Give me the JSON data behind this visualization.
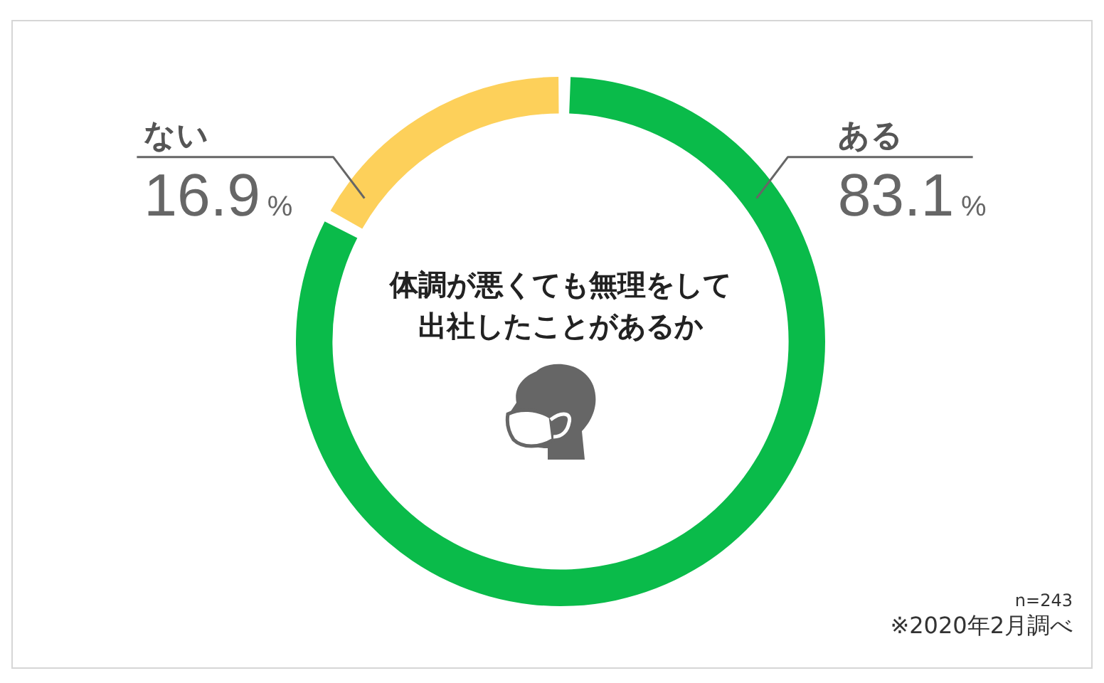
{
  "chart_data": {
    "type": "donut",
    "title": "体調が悪くても無理をして出社したことがあるか",
    "categories": [
      "ある",
      "ない"
    ],
    "values": [
      83.1,
      16.9
    ],
    "colors": [
      "#0abb4a",
      "#fdd05a"
    ],
    "value_labels": [
      "83.1%",
      "16.9%"
    ],
    "legend": false,
    "annotations": [
      "n=243",
      "※2020年2月調べ"
    ]
  }
}
